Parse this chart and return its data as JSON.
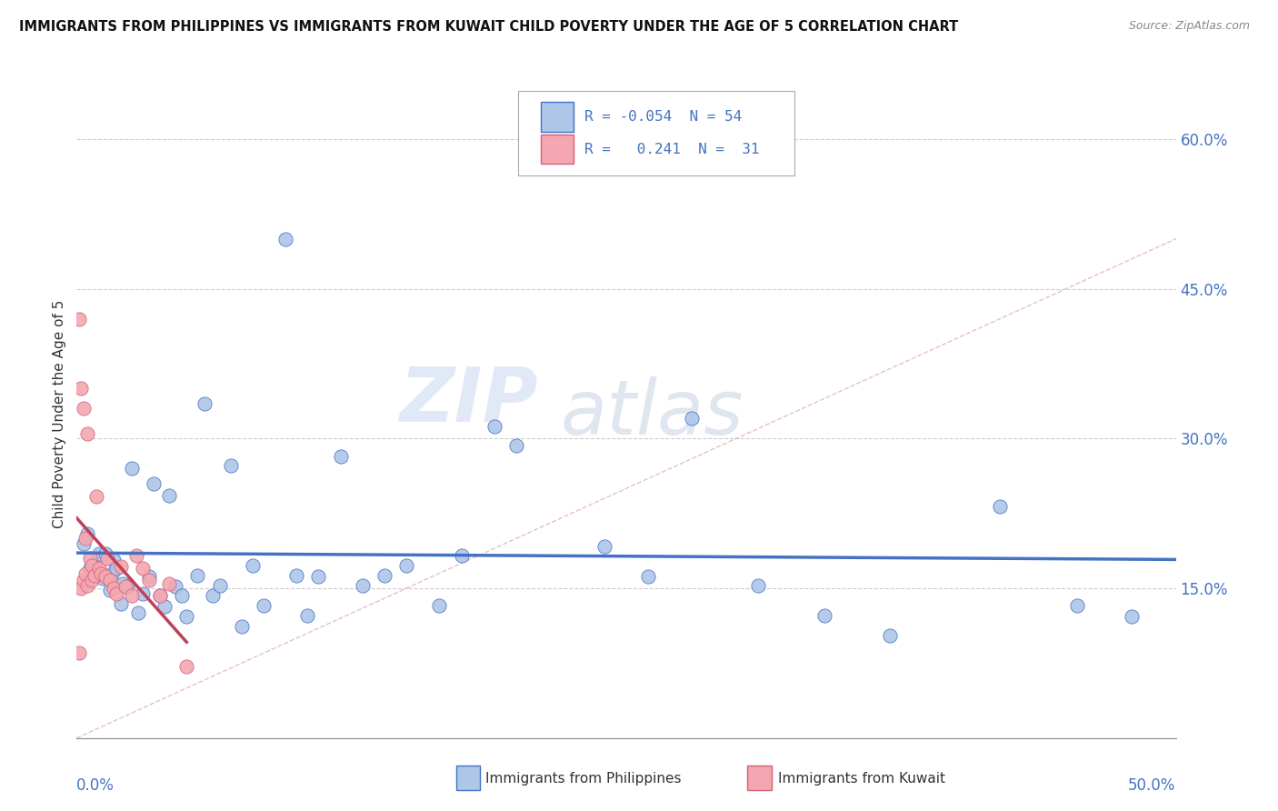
{
  "title": "IMMIGRANTS FROM PHILIPPINES VS IMMIGRANTS FROM KUWAIT CHILD POVERTY UNDER THE AGE OF 5 CORRELATION CHART",
  "source": "Source: ZipAtlas.com",
  "ylabel": "Child Poverty Under the Age of 5",
  "y_ticks": [
    0.0,
    0.15,
    0.3,
    0.45,
    0.6
  ],
  "y_tick_labels": [
    "",
    "15.0%",
    "30.0%",
    "45.0%",
    "60.0%"
  ],
  "x_range": [
    0,
    0.5
  ],
  "y_range": [
    0,
    0.65
  ],
  "color_philippines": "#aec6e8",
  "color_kuwait": "#f4a7b0",
  "edge_philippines": "#4472c4",
  "edge_kuwait": "#d4607a",
  "trendline_philippines_color": "#4472c4",
  "trendline_kuwait_color": "#c0405a",
  "philippines_x": [
    0.003,
    0.005,
    0.006,
    0.008,
    0.01,
    0.012,
    0.013,
    0.015,
    0.016,
    0.017,
    0.018,
    0.02,
    0.021,
    0.023,
    0.025,
    0.028,
    0.03,
    0.033,
    0.035,
    0.038,
    0.04,
    0.042,
    0.045,
    0.048,
    0.05,
    0.055,
    0.058,
    0.062,
    0.065,
    0.07,
    0.075,
    0.08,
    0.085,
    0.095,
    0.1,
    0.105,
    0.11,
    0.12,
    0.13,
    0.14,
    0.15,
    0.165,
    0.175,
    0.19,
    0.2,
    0.24,
    0.26,
    0.28,
    0.31,
    0.34,
    0.37,
    0.42,
    0.455,
    0.48
  ],
  "philippines_y": [
    0.195,
    0.205,
    0.17,
    0.175,
    0.185,
    0.16,
    0.185,
    0.148,
    0.165,
    0.178,
    0.17,
    0.135,
    0.155,
    0.152,
    0.27,
    0.125,
    0.145,
    0.162,
    0.255,
    0.143,
    0.132,
    0.243,
    0.152,
    0.143,
    0.122,
    0.163,
    0.335,
    0.143,
    0.153,
    0.273,
    0.112,
    0.173,
    0.133,
    0.5,
    0.163,
    0.123,
    0.162,
    0.282,
    0.153,
    0.163,
    0.173,
    0.133,
    0.183,
    0.312,
    0.293,
    0.192,
    0.162,
    0.32,
    0.153,
    0.123,
    0.103,
    0.232,
    0.133,
    0.122
  ],
  "kuwait_x": [
    0.001,
    0.001,
    0.002,
    0.002,
    0.003,
    0.003,
    0.004,
    0.004,
    0.005,
    0.005,
    0.006,
    0.007,
    0.007,
    0.008,
    0.009,
    0.01,
    0.011,
    0.013,
    0.014,
    0.015,
    0.017,
    0.018,
    0.02,
    0.022,
    0.025,
    0.027,
    0.03,
    0.033,
    0.038,
    0.042,
    0.05
  ],
  "kuwait_y": [
    0.42,
    0.085,
    0.35,
    0.15,
    0.33,
    0.158,
    0.2,
    0.165,
    0.305,
    0.153,
    0.18,
    0.173,
    0.158,
    0.163,
    0.242,
    0.17,
    0.165,
    0.162,
    0.18,
    0.158,
    0.15,
    0.145,
    0.172,
    0.152,
    0.143,
    0.183,
    0.17,
    0.158,
    0.143,
    0.155,
    0.072
  ],
  "watermark_zip": "ZIP",
  "watermark_atlas": "atlas",
  "background_color": "#ffffff"
}
